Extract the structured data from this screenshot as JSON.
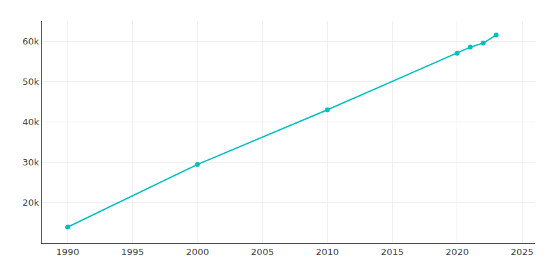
{
  "chart_data": {
    "type": "line",
    "x": [
      1990,
      2000,
      2010,
      2020,
      2021,
      2022,
      2023
    ],
    "values": [
      14000,
      29500,
      43000,
      57000,
      58500,
      59500,
      61500
    ],
    "color": "#00BFBF",
    "marker": "circle",
    "line_style": "solid",
    "xlim": [
      1988,
      2026
    ],
    "xticks": [
      1990,
      1995,
      2000,
      2005,
      2010,
      2015,
      2020,
      2025
    ],
    "ylim": [
      10000,
      65000
    ],
    "yticks": [
      {
        "value": 20000,
        "label": "20k"
      },
      {
        "value": 30000,
        "label": "30k"
      },
      {
        "value": 40000,
        "label": "40k"
      },
      {
        "value": 50000,
        "label": "50k"
      },
      {
        "value": 60000,
        "label": "60k"
      }
    ],
    "grid": true
  }
}
